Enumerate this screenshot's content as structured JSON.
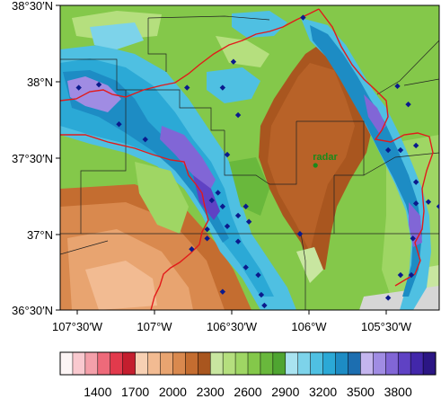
{
  "map": {
    "lat_labels": [
      "38°30′N",
      "38°N",
      "37°30′N",
      "37°N",
      "36°30′N"
    ],
    "lon_labels": [
      "107°30′W",
      "107°W",
      "106°30′W",
      "106°W",
      "105°30′W"
    ],
    "extent": {
      "lon_min": -107.6,
      "lon_max": -105.15,
      "lat_min": 36.5,
      "lat_max": 38.5
    },
    "radar": {
      "label": "radar",
      "lon": -105.95,
      "lat": 37.45,
      "color": "#1a8a1a"
    },
    "stations": [
      {
        "lon": -107.48,
        "lat": 37.96
      },
      {
        "lon": -107.35,
        "lat": 37.98
      },
      {
        "lon": -107.22,
        "lat": 37.72
      },
      {
        "lon": -107.05,
        "lat": 37.62
      },
      {
        "lon": -106.78,
        "lat": 37.96
      },
      {
        "lon": -106.55,
        "lat": 37.96
      },
      {
        "lon": -106.45,
        "lat": 37.78
      },
      {
        "lon": -106.52,
        "lat": 37.52
      },
      {
        "lon": -106.58,
        "lat": 37.27
      },
      {
        "lon": -106.62,
        "lat": 37.22
      },
      {
        "lon": -106.55,
        "lat": 37.18
      },
      {
        "lon": -106.52,
        "lat": 37.05
      },
      {
        "lon": -106.4,
        "lat": 37.18
      },
      {
        "lon": -106.45,
        "lat": 37.12
      },
      {
        "lon": -106.65,
        "lat": 37.03
      },
      {
        "lon": -106.38,
        "lat": 37.08
      },
      {
        "lon": -106.45,
        "lat": 36.95
      },
      {
        "lon": -106.65,
        "lat": 36.97
      },
      {
        "lon": -106.4,
        "lat": 36.78
      },
      {
        "lon": -106.32,
        "lat": 36.73
      },
      {
        "lon": -106.28,
        "lat": 36.53
      },
      {
        "lon": -106.05,
        "lat": 37.0
      },
      {
        "lon": -106.75,
        "lat": 36.9
      },
      {
        "lon": -106.55,
        "lat": 36.62
      },
      {
        "lon": -106.3,
        "lat": 36.6
      },
      {
        "lon": -106.48,
        "lat": 38.13
      },
      {
        "lon": -106.03,
        "lat": 38.42
      },
      {
        "lon": -105.42,
        "lat": 37.97
      },
      {
        "lon": -105.35,
        "lat": 37.85
      },
      {
        "lon": -105.3,
        "lat": 37.58
      },
      {
        "lon": -105.4,
        "lat": 37.55
      },
      {
        "lon": -105.48,
        "lat": 37.55
      },
      {
        "lon": -105.3,
        "lat": 37.34
      },
      {
        "lon": -105.3,
        "lat": 37.2
      },
      {
        "lon": -105.22,
        "lat": 37.21
      },
      {
        "lon": -105.15,
        "lat": 37.18
      },
      {
        "lon": -105.32,
        "lat": 36.97
      },
      {
        "lon": -105.33,
        "lat": 36.73
      },
      {
        "lon": -105.48,
        "lat": 36.58
      },
      {
        "lon": -105.4,
        "lat": 36.73
      }
    ]
  },
  "colorbar": {
    "colors": [
      "#fdf5f5",
      "#f9c9cf",
      "#f4a0aa",
      "#ee6a7a",
      "#e23a4c",
      "#c41e2e",
      "#f7d0b3",
      "#f2bb92",
      "#e8a470",
      "#d9894e",
      "#c46d30",
      "#a9561f",
      "#c8e6a0",
      "#b5df7e",
      "#9fd664",
      "#84c84a",
      "#69b83c",
      "#4fa531",
      "#a9e3f0",
      "#7dd3ea",
      "#4fc0e2",
      "#2ba9d6",
      "#1d8cc4",
      "#1c6eb0",
      "#c4b5ee",
      "#a08ce3",
      "#8166d6",
      "#5f42c4",
      "#4227aa",
      "#2b1684"
    ],
    "labels": [
      "1400",
      "1700",
      "2000",
      "2300",
      "2600",
      "2900",
      "3200",
      "3500",
      "3800"
    ]
  }
}
